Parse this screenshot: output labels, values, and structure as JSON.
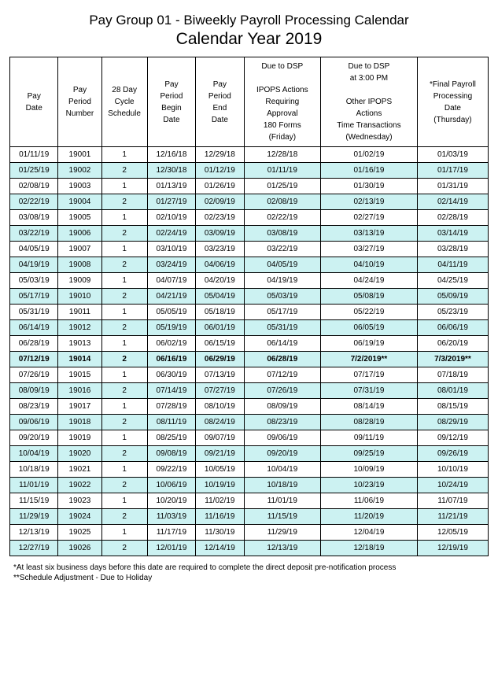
{
  "title_line1": "Pay Group 01 - Biweekly Payroll Processing Calendar",
  "title_line2": "Calendar Year 2019",
  "headers": [
    "Pay\nDate",
    "Pay\nPeriod\nNumber",
    "28 Day\nCycle\nSchedule",
    "Pay\nPeriod\nBegin\nDate",
    "Pay\nPeriod\nEnd\nDate",
    "Due to DSP\n\nIPOPS Actions\nRequiring\nApproval\n180 Forms\n(Friday)",
    "Due to DSP\nat 3:00 PM\n\nOther IPOPS\nActions\nTime Transactions\n(Wednesday)",
    "*Final Payroll\nProcessing\nDate\n(Thursday)"
  ],
  "col_widths": [
    "58",
    "52",
    "55",
    "58",
    "58",
    "92",
    "116",
    "85"
  ],
  "highlight_color": "#ccf2f2",
  "bold_row_index": 13,
  "rows": [
    [
      "01/11/19",
      "19001",
      "1",
      "12/16/18",
      "12/29/18",
      "12/28/18",
      "01/02/19",
      "01/03/19"
    ],
    [
      "01/25/19",
      "19002",
      "2",
      "12/30/18",
      "01/12/19",
      "01/11/19",
      "01/16/19",
      "01/17/19"
    ],
    [
      "02/08/19",
      "19003",
      "1",
      "01/13/19",
      "01/26/19",
      "01/25/19",
      "01/30/19",
      "01/31/19"
    ],
    [
      "02/22/19",
      "19004",
      "2",
      "01/27/19",
      "02/09/19",
      "02/08/19",
      "02/13/19",
      "02/14/19"
    ],
    [
      "03/08/19",
      "19005",
      "1",
      "02/10/19",
      "02/23/19",
      "02/22/19",
      "02/27/19",
      "02/28/19"
    ],
    [
      "03/22/19",
      "19006",
      "2",
      "02/24/19",
      "03/09/19",
      "03/08/19",
      "03/13/19",
      "03/14/19"
    ],
    [
      "04/05/19",
      "19007",
      "1",
      "03/10/19",
      "03/23/19",
      "03/22/19",
      "03/27/19",
      "03/28/19"
    ],
    [
      "04/19/19",
      "19008",
      "2",
      "03/24/19",
      "04/06/19",
      "04/05/19",
      "04/10/19",
      "04/11/19"
    ],
    [
      "05/03/19",
      "19009",
      "1",
      "04/07/19",
      "04/20/19",
      "04/19/19",
      "04/24/19",
      "04/25/19"
    ],
    [
      "05/17/19",
      "19010",
      "2",
      "04/21/19",
      "05/04/19",
      "05/03/19",
      "05/08/19",
      "05/09/19"
    ],
    [
      "05/31/19",
      "19011",
      "1",
      "05/05/19",
      "05/18/19",
      "05/17/19",
      "05/22/19",
      "05/23/19"
    ],
    [
      "06/14/19",
      "19012",
      "2",
      "05/19/19",
      "06/01/19",
      "05/31/19",
      "06/05/19",
      "06/06/19"
    ],
    [
      "06/28/19",
      "19013",
      "1",
      "06/02/19",
      "06/15/19",
      "06/14/19",
      "06/19/19",
      "06/20/19"
    ],
    [
      "07/12/19",
      "19014",
      "2",
      "06/16/19",
      "06/29/19",
      "06/28/19",
      "7/2/2019**",
      "7/3/2019**"
    ],
    [
      "07/26/19",
      "19015",
      "1",
      "06/30/19",
      "07/13/19",
      "07/12/19",
      "07/17/19",
      "07/18/19"
    ],
    [
      "08/09/19",
      "19016",
      "2",
      "07/14/19",
      "07/27/19",
      "07/26/19",
      "07/31/19",
      "08/01/19"
    ],
    [
      "08/23/19",
      "19017",
      "1",
      "07/28/19",
      "08/10/19",
      "08/09/19",
      "08/14/19",
      "08/15/19"
    ],
    [
      "09/06/19",
      "19018",
      "2",
      "08/11/19",
      "08/24/19",
      "08/23/19",
      "08/28/19",
      "08/29/19"
    ],
    [
      "09/20/19",
      "19019",
      "1",
      "08/25/19",
      "09/07/19",
      "09/06/19",
      "09/11/19",
      "09/12/19"
    ],
    [
      "10/04/19",
      "19020",
      "2",
      "09/08/19",
      "09/21/19",
      "09/20/19",
      "09/25/19",
      "09/26/19"
    ],
    [
      "10/18/19",
      "19021",
      "1",
      "09/22/19",
      "10/05/19",
      "10/04/19",
      "10/09/19",
      "10/10/19"
    ],
    [
      "11/01/19",
      "19022",
      "2",
      "10/06/19",
      "10/19/19",
      "10/18/19",
      "10/23/19",
      "10/24/19"
    ],
    [
      "11/15/19",
      "19023",
      "1",
      "10/20/19",
      "11/02/19",
      "11/01/19",
      "11/06/19",
      "11/07/19"
    ],
    [
      "11/29/19",
      "19024",
      "2",
      "11/03/19",
      "11/16/19",
      "11/15/19",
      "11/20/19",
      "11/21/19"
    ],
    [
      "12/13/19",
      "19025",
      "1",
      "11/17/19",
      "11/30/19",
      "11/29/19",
      "12/04/19",
      "12/05/19"
    ],
    [
      "12/27/19",
      "19026",
      "2",
      "12/01/19",
      "12/14/19",
      "12/13/19",
      "12/18/19",
      "12/19/19"
    ]
  ],
  "footnote1": "*At least six business days before this date are required to complete the direct deposit pre-notification process",
  "footnote2": "**Schedule Adjustment - Due to Holiday"
}
